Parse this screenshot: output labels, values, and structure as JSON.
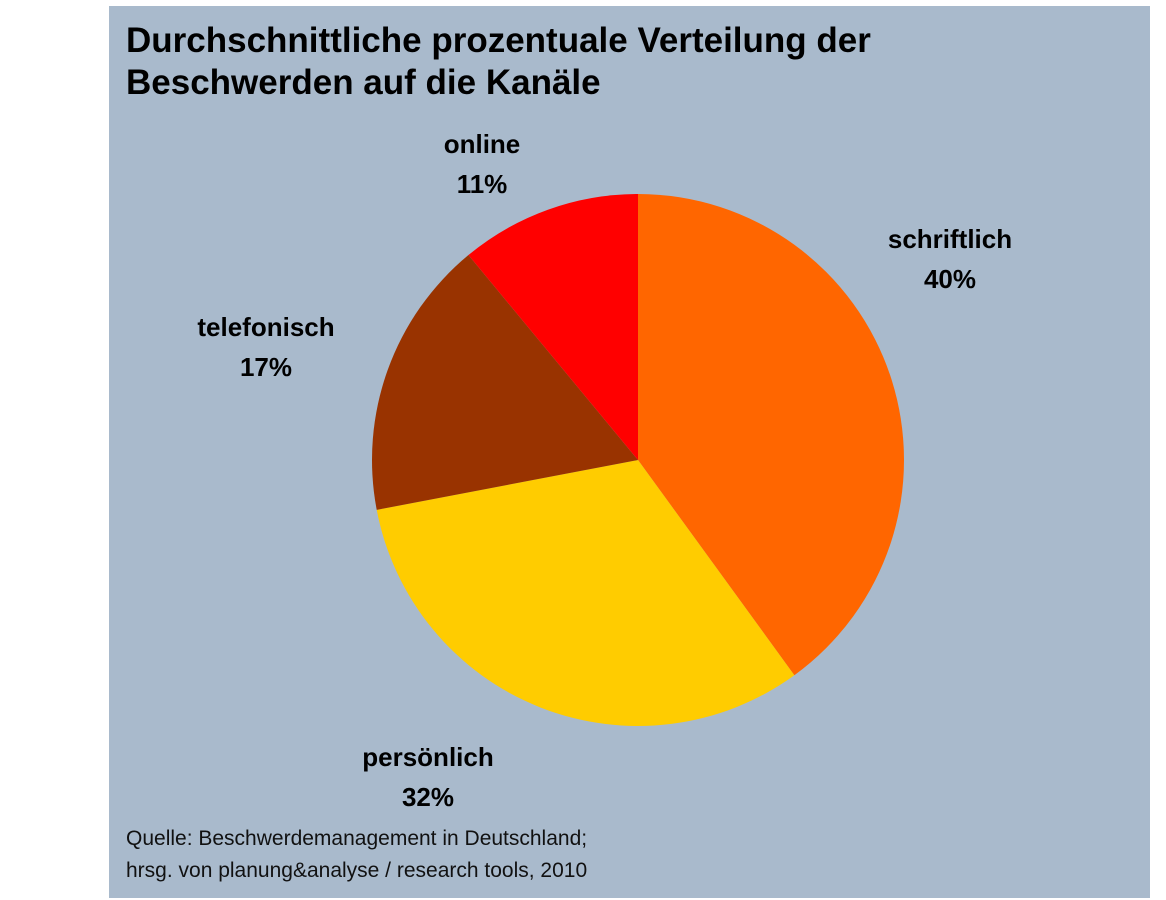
{
  "chart_data": {
    "type": "pie",
    "title": "Durchschnittliche prozentuale Verteilung der Beschwerden auf die Kanäle",
    "title_lines": [
      "Durchschnittliche prozentuale Verteilung der",
      "Beschwerden auf die Kanäle"
    ],
    "start_angle": "12 o'clock, clockwise",
    "slices": [
      {
        "label": "schriftlich",
        "value": 40,
        "value_label": "40%",
        "color": "#FF6600"
      },
      {
        "label": "persönlich",
        "value": 32,
        "value_label": "32%",
        "color": "#FFCC00"
      },
      {
        "label": "telefonisch",
        "value": 17,
        "value_label": "17%",
        "color": "#993300"
      },
      {
        "label": "online",
        "value": 11,
        "value_label": "11%",
        "color": "#FF0000"
      }
    ],
    "source_lines": [
      "Quelle: Beschwerdemanagement in Deutschland;",
      "hrsg. von planung&analyse / research tools, 2010"
    ],
    "background": "#A9BACC"
  }
}
